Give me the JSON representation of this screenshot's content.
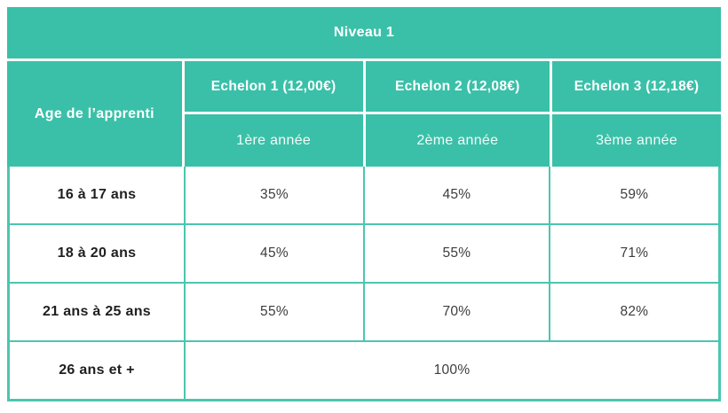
{
  "chart_data": {
    "type": "table",
    "title": "Niveau 1",
    "corner_header": "Age de l’apprenti",
    "column_groups": [
      {
        "echelon": "Echelon 1 (12,00€)",
        "year": "1ère année"
      },
      {
        "echelon": "Echelon 2 (12,08€)",
        "year": "2ème année"
      },
      {
        "echelon": "Echelon 3 (12,18€)",
        "year": "3ème année"
      }
    ],
    "rows": [
      {
        "label": "16 à 17 ans",
        "values": [
          "35%",
          "45%",
          "59%"
        ]
      },
      {
        "label": "18 à 20 ans",
        "values": [
          "45%",
          "55%",
          "71%"
        ]
      },
      {
        "label": "21 ans à 25 ans",
        "values": [
          "55%",
          "70%",
          "82%"
        ]
      },
      {
        "label": "26 ans et +",
        "values": [
          "100%"
        ],
        "span": "all-columns"
      }
    ]
  },
  "colors": {
    "teal": "#3ac0a8",
    "border_teal": "#4cc5af",
    "header_text": "#ffffff",
    "label_text": "#1f1f1f",
    "value_text": "#3d3d3d"
  }
}
